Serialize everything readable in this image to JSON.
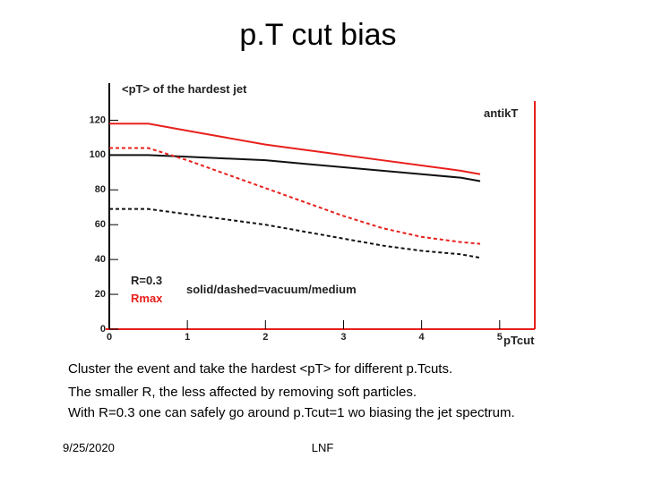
{
  "slide": {
    "title": "p.T cut bias",
    "body": [
      "Cluster the event and take the hardest <pT> for different p.Tcuts.",
      "The smaller R, the less affected by removing soft particles.",
      "With R=0.3 one can safely go around p.Tcut=1 wo biasing the jet spectrum."
    ],
    "date": "9/25/2020",
    "footer": "LNF"
  },
  "chart_data": {
    "type": "line",
    "title": "<pT> of the hardest jet",
    "x_label": "pTcut",
    "annotations": [
      "antikT",
      "R=0.3",
      "Rmax",
      "solid/dashed=vacuum/medium"
    ],
    "x": [
      0,
      0.5,
      1,
      1.5,
      2,
      2.5,
      3,
      3.5,
      4,
      4.5,
      4.75
    ],
    "series": [
      {
        "color": "#e8201c",
        "dash": false,
        "values": [
          118,
          118,
          114,
          110,
          106,
          103,
          100,
          97,
          94,
          91,
          89
        ]
      },
      {
        "color": "#111111",
        "dash": false,
        "values": [
          100,
          100,
          99,
          98,
          97,
          95,
          93,
          91,
          89,
          87,
          85
        ]
      },
      {
        "color": "#e8201c",
        "dash": true,
        "values": [
          104,
          104,
          97,
          89,
          81,
          73,
          65,
          58,
          53,
          50,
          49
        ]
      },
      {
        "color": "#111111",
        "dash": true,
        "values": [
          69,
          69,
          66,
          63,
          60,
          56,
          52,
          48,
          45,
          43,
          41
        ]
      }
    ],
    "xlim": [
      0,
      5.45
    ],
    "ylim": [
      0,
      131
    ],
    "xticks": [
      0,
      1,
      2,
      3,
      4,
      5
    ],
    "yticks": [
      0,
      20,
      40,
      60,
      80,
      100,
      120
    ],
    "grid": false
  }
}
